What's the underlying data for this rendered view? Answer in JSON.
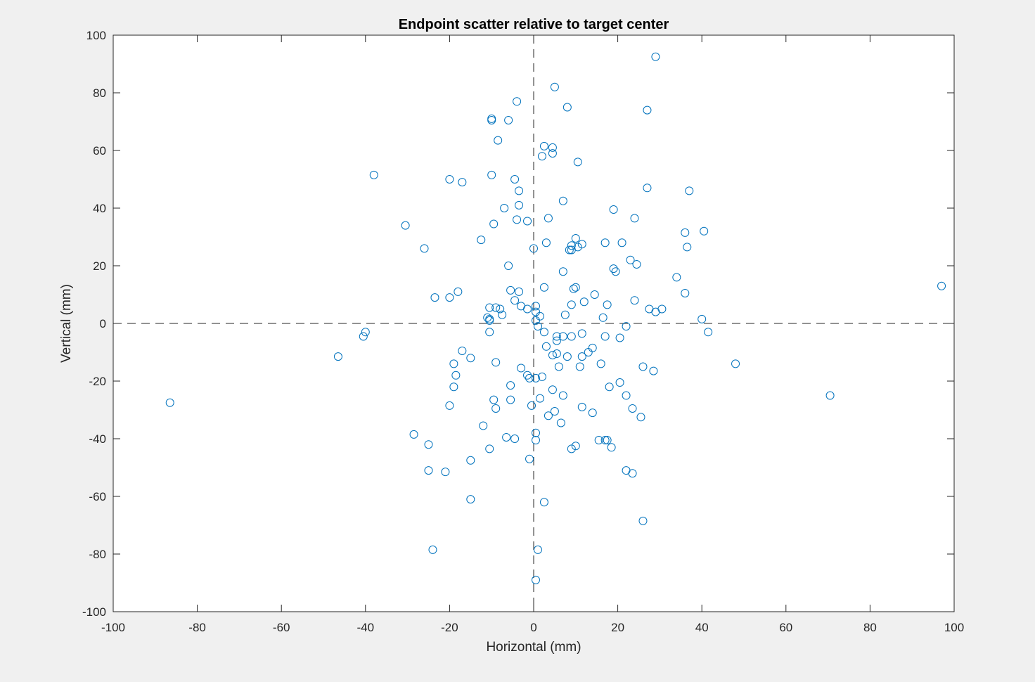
{
  "chart_data": {
    "type": "scatter",
    "title": "Endpoint scatter relative to target center",
    "xlabel": "Horizontal (mm)",
    "ylabel": "Vertical (mm)",
    "xlim": [
      -100,
      100
    ],
    "ylim": [
      -100,
      100
    ],
    "xticks": [
      "-100",
      "-80",
      "-60",
      "-40",
      "-20",
      "0",
      "20",
      "40",
      "60",
      "80",
      "100"
    ],
    "yticks": [
      "-100",
      "-80",
      "-60",
      "-40",
      "-20",
      "0",
      "20",
      "40",
      "60",
      "80",
      "100"
    ],
    "grid": false,
    "reference_lines": {
      "x": 0,
      "y": 0,
      "style": "dashed"
    },
    "marker": "open-circle",
    "marker_color": "#0072bd",
    "series": [
      {
        "x": [
          29,
          5,
          27,
          8,
          -4,
          -10,
          -10,
          -6,
          -8.5,
          2.5,
          4.5,
          4.5,
          2,
          10.5,
          -20,
          -10,
          -4.5,
          -17,
          -38,
          27,
          37,
          -3.5,
          -3.5,
          7,
          -7,
          19,
          -4,
          -1.5,
          3.5,
          24,
          -30.5,
          36,
          40.5,
          -9.5,
          10,
          -12.5,
          3,
          9,
          11.5,
          17,
          21,
          0,
          -26,
          36.5,
          9,
          8.5,
          10.5,
          -6,
          23,
          24.5,
          7,
          19.5,
          19,
          34,
          2.5,
          -5.5,
          10,
          9.5,
          -3.5,
          -18,
          36,
          14.5,
          -23.5,
          -20,
          24,
          -4.5,
          12,
          9,
          17.5,
          -10.5,
          -9,
          -3,
          0.5,
          -8,
          27.5,
          30.5,
          -1.5,
          0.5,
          0.5,
          1.5,
          29,
          -7.5,
          7.5,
          16.5,
          -11,
          -10.5,
          40,
          -10.5,
          1,
          22,
          -40,
          41.5,
          -10.5,
          2.5,
          5.5,
          7,
          11.5,
          17,
          20.5,
          9,
          5.5,
          3,
          14,
          13,
          -40.5,
          97,
          5.5,
          8,
          4.5,
          -46.5,
          -17,
          -15,
          11.5,
          48,
          -9,
          26,
          -19,
          6,
          11,
          16,
          -3,
          -18.5,
          28.5,
          -1,
          2,
          -1.5,
          0.5,
          20.5,
          -5.5,
          18,
          -19,
          4.5,
          22,
          -86.5,
          7,
          1.5,
          -9.5,
          -5.5,
          -0.5,
          23.5,
          -20,
          11.5,
          -9,
          5,
          14,
          25.5,
          3.5,
          6.5,
          -12,
          -28.5,
          0.5,
          0.5,
          -6.5,
          -4.5,
          15.5,
          17,
          17.5,
          -25,
          -10.5,
          18.5,
          10,
          9,
          -1,
          -15,
          -25,
          70.5,
          -21,
          22,
          23.5,
          -15,
          -24,
          2.5,
          26,
          1,
          0.5
        ],
        "y": [
          92.5,
          82,
          74,
          75,
          77,
          71,
          70.5,
          70.5,
          63.5,
          61.5,
          61,
          59,
          58,
          56,
          50,
          51.5,
          50,
          49,
          51.5,
          47,
          46,
          46,
          41,
          42.5,
          40,
          39.5,
          36,
          35.5,
          36.5,
          36.5,
          34,
          31.5,
          32,
          34.5,
          29.5,
          29,
          28,
          27,
          27.5,
          28,
          28,
          26,
          26,
          26.5,
          25.5,
          25.5,
          26.5,
          20,
          22,
          20.5,
          18,
          18,
          19,
          16,
          12.5,
          11.5,
          12.5,
          12,
          11,
          11,
          10.5,
          10,
          9,
          9,
          8,
          8,
          7.5,
          6.5,
          6.5,
          5.5,
          5.5,
          6,
          6,
          5,
          5,
          5,
          5,
          4,
          1,
          2.5,
          4,
          3,
          3,
          2,
          2,
          1.5,
          1.5,
          1,
          -1,
          -1,
          -3,
          -3,
          -3,
          -3,
          -4.5,
          -4.5,
          -3.5,
          -4.5,
          -5,
          -4.5,
          -6,
          -8,
          -8.5,
          -10,
          -4.5,
          13,
          -10.5,
          -11.5,
          -11,
          -11.5,
          -9.5,
          -12,
          -11.5,
          -14,
          -13.5,
          -15,
          -14,
          -15,
          -15,
          -14,
          -15.5,
          -18,
          -16.5,
          -19,
          -18.5,
          -18,
          -19,
          -20.5,
          -21.5,
          -22,
          -22,
          -23,
          -25,
          -27.5,
          -25,
          -26,
          -26.5,
          -26.5,
          -28.5,
          -29.5,
          -28.5,
          -29,
          -29.5,
          -30.5,
          -31,
          -32.5,
          -32,
          -34.5,
          -35.5,
          -38.5,
          -38,
          -40.5,
          -39.5,
          -40,
          -40.5,
          -40.5,
          -40.5,
          -42,
          -43.5,
          -43,
          -42.5,
          -43.5,
          -47,
          -47.5,
          -51,
          -25,
          -51.5,
          -51,
          -52,
          -61,
          -78.5,
          -62,
          -68.5,
          -78.5,
          -89
        ]
      }
    ]
  }
}
